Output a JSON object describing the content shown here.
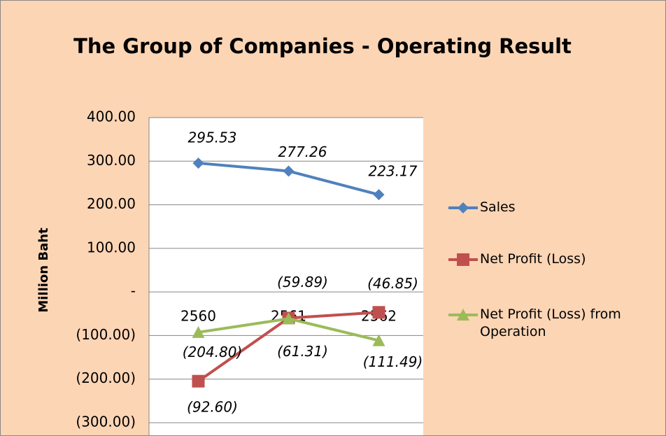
{
  "chart_data": {
    "type": "line",
    "title": "The Group of Companies - Operating Result",
    "y_label": "Million Baht",
    "categories": [
      "2560",
      "2561",
      "2562"
    ],
    "series": [
      {
        "name": "Sales",
        "color": "#4f81bd",
        "marker": "diamond",
        "values": [
          295.53,
          277.26,
          223.17
        ]
      },
      {
        "name": "Net Profit (Loss)",
        "color": "#c0504d",
        "marker": "square",
        "values": [
          -204.8,
          -59.89,
          -46.85
        ],
        "value_labels": [
          "(204.80)",
          "(59.89)",
          "(46.85)"
        ]
      },
      {
        "name": "Net Profit (Loss) from Operation",
        "color": "#9bbb59",
        "marker": "triangle",
        "values": [
          -92.6,
          -61.31,
          -111.49
        ],
        "value_labels": [
          "(92.60)",
          "(61.31)",
          "(111.49)"
        ]
      }
    ],
    "ylim": [
      -300,
      400
    ],
    "yticks": [
      {
        "value": -300,
        "label": "(300.00)"
      },
      {
        "value": -200,
        "label": "(200.00)"
      },
      {
        "value": -100,
        "label": "(100.00)"
      },
      {
        "value": 0,
        "label": "-"
      },
      {
        "value": 100,
        "label": "100.00"
      },
      {
        "value": 200,
        "label": "200.00"
      },
      {
        "value": 300,
        "label": "300.00"
      },
      {
        "value": 400,
        "label": "400.00"
      }
    ],
    "grid": true,
    "legend": "right"
  }
}
